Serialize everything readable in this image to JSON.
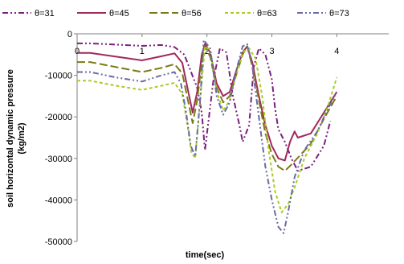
{
  "chart_data": {
    "type": "line",
    "title": "",
    "xlabel": "time(sec)",
    "ylabel": "soil horizontal dynamic pressure (kg/m2)",
    "xlim": [
      0,
      4.8
    ],
    "ylim": [
      -50000,
      0
    ],
    "x_ticks": [
      0,
      1,
      2,
      3,
      4
    ],
    "x_tick_labels": [
      "0",
      "1",
      "2",
      "3",
      "4"
    ],
    "y_ticks": [
      0,
      -10000,
      -20000,
      -30000,
      -40000,
      -50000
    ],
    "y_tick_labels": [
      "0",
      "-10000",
      "-20000",
      "-30000",
      "-40000",
      "-50000"
    ],
    "grid": false,
    "legend_position": "top",
    "series": [
      {
        "name": "θ=31",
        "color": "#7b1f7e",
        "dash": "dash-dot-dot",
        "x": [
          0,
          0.2,
          0.6,
          1.0,
          1.3,
          1.5,
          1.65,
          1.75,
          1.85,
          1.92,
          1.97,
          2.1,
          2.2,
          2.3,
          2.4,
          2.5,
          2.55,
          2.65,
          2.72,
          2.8,
          2.9,
          3.0,
          3.05,
          3.1,
          3.2,
          3.3,
          3.4,
          3.6,
          3.8,
          3.9
        ],
        "y": [
          -2300,
          -2300,
          -2600,
          -2900,
          -2700,
          -3200,
          -5000,
          -9000,
          -13000,
          -19000,
          -28000,
          -11000,
          -3500,
          -4500,
          -15000,
          -22000,
          -26000,
          -22000,
          -8000,
          -3500,
          -5000,
          -11000,
          -18000,
          -23000,
          -26000,
          -30000,
          -33000,
          -32000,
          -27000,
          -21000
        ]
      },
      {
        "name": "θ=45",
        "color": "#a0295a",
        "dash": "solid",
        "x": [
          0,
          0.2,
          0.6,
          1.0,
          1.3,
          1.5,
          1.62,
          1.7,
          1.78,
          1.85,
          1.92,
          1.97,
          2.05,
          2.15,
          2.25,
          2.35,
          2.45,
          2.55,
          2.62,
          2.7,
          2.8,
          2.9,
          3.0,
          3.1,
          3.2,
          3.28,
          3.35,
          3.4,
          3.6,
          3.8,
          4.0
        ],
        "y": [
          -4600,
          -4600,
          -5500,
          -6400,
          -5400,
          -4700,
          -7000,
          -13000,
          -19000,
          -14000,
          -5000,
          -2400,
          -4500,
          -12000,
          -15000,
          -14000,
          -9000,
          -4500,
          -3000,
          -7000,
          -15000,
          -22000,
          -27000,
          -30000,
          -30500,
          -26000,
          -23500,
          -25000,
          -24000,
          -19000,
          -14000
        ]
      },
      {
        "name": "θ=56",
        "color": "#7a7a16",
        "dash": "long-dash",
        "x": [
          0,
          0.2,
          0.6,
          1.0,
          1.3,
          1.5,
          1.62,
          1.7,
          1.78,
          1.85,
          1.92,
          1.97,
          2.05,
          2.15,
          2.25,
          2.35,
          2.45,
          2.55,
          2.62,
          2.7,
          2.8,
          2.9,
          3.0,
          3.1,
          3.2,
          3.3,
          3.45,
          3.6,
          3.8,
          4.0
        ],
        "y": [
          -6800,
          -6800,
          -8000,
          -9200,
          -8200,
          -7300,
          -9500,
          -15500,
          -21500,
          -16000,
          -7000,
          -3000,
          -5500,
          -13000,
          -16500,
          -15000,
          -10000,
          -5000,
          -3000,
          -8000,
          -16000,
          -24000,
          -29000,
          -32000,
          -33000,
          -31500,
          -29000,
          -26500,
          -20500,
          -15000
        ]
      },
      {
        "name": "θ=63",
        "color": "#a8cc2a",
        "dash": "short-dash",
        "x": [
          0,
          0.2,
          0.6,
          1.0,
          1.3,
          1.5,
          1.62,
          1.7,
          1.76,
          1.82,
          1.9,
          1.97,
          2.05,
          2.15,
          2.25,
          2.35,
          2.45,
          2.55,
          2.65,
          2.75,
          2.85,
          2.95,
          3.05,
          3.15,
          3.25,
          3.35,
          3.5,
          3.7,
          3.85,
          4.0
        ],
        "y": [
          -11300,
          -11300,
          -12500,
          -13500,
          -12500,
          -11800,
          -14500,
          -22000,
          -28500,
          -30000,
          -15000,
          -3000,
          -4000,
          -14000,
          -18500,
          -16000,
          -10000,
          -4500,
          -3500,
          -6000,
          -15000,
          -28000,
          -38000,
          -43000,
          -41000,
          -37000,
          -30000,
          -24000,
          -18000,
          -10500
        ]
      },
      {
        "name": "θ=73",
        "color": "#6a6aa8",
        "dash": "dash-dot-dot",
        "x": [
          0,
          0.2,
          0.6,
          1.0,
          1.3,
          1.5,
          1.6,
          1.68,
          1.75,
          1.82,
          1.9,
          1.95,
          2.05,
          2.15,
          2.25,
          2.35,
          2.45,
          2.55,
          2.62,
          2.7,
          2.8,
          2.9,
          3.0,
          3.1,
          3.18,
          3.25,
          3.35,
          3.5,
          3.7,
          3.85,
          4.0
        ],
        "y": [
          -9200,
          -9200,
          -10500,
          -11500,
          -10000,
          -9200,
          -12000,
          -19000,
          -27000,
          -29500,
          -15000,
          -1500,
          -3500,
          -15000,
          -19500,
          -16500,
          -9000,
          -3000,
          -2500,
          -8000,
          -20000,
          -32000,
          -40000,
          -46500,
          -48000,
          -43000,
          -34500,
          -28000,
          -23500,
          -18500,
          -14000
        ]
      }
    ]
  }
}
